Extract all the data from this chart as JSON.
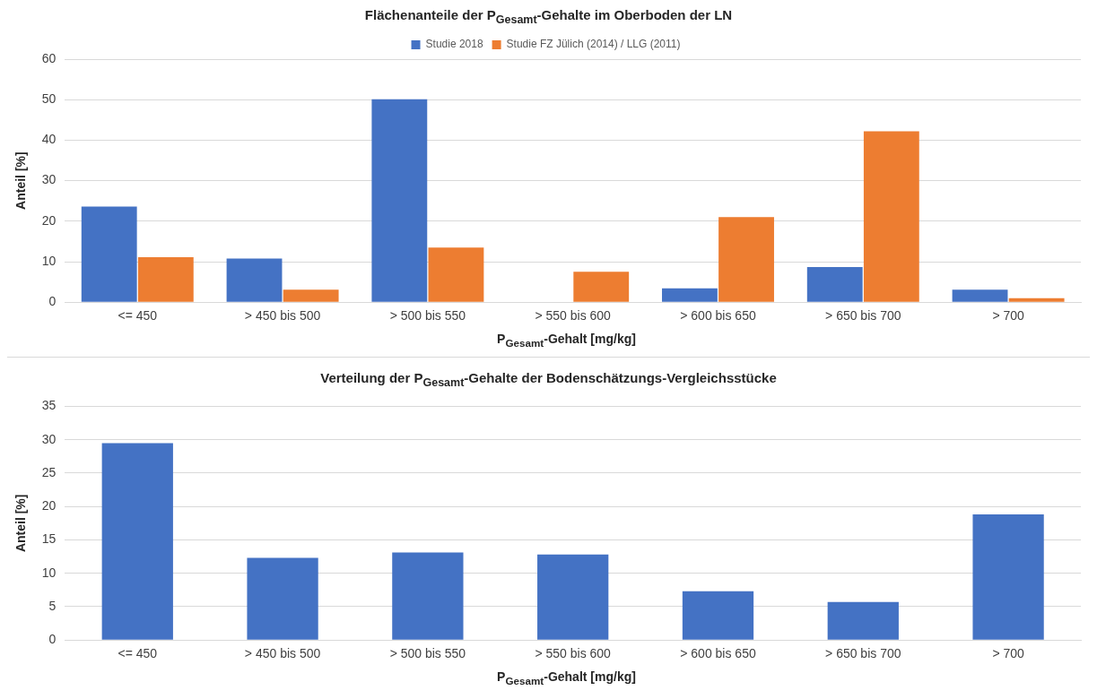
{
  "chart_data": [
    {
      "type": "bar",
      "title": "Flächenanteile der P$_{Gesamt}$-Gehalte im Oberboden der LN",
      "xlabel": "P$_{Gesamt}$-Gehalt [mg/kg]",
      "ylabel": "Anteil [%]",
      "categories": [
        "<= 450",
        "> 450 bis 500",
        "> 500 bis 550",
        "> 550 bis 600",
        "> 600 bis 650",
        "> 650 bis 700",
        "> 700"
      ],
      "series": [
        {
          "name": "Studie 2018",
          "color": "#4472c4",
          "values": [
            23.6,
            10.8,
            50.1,
            0,
            3.4,
            8.7,
            3.1
          ]
        },
        {
          "name": "Studie FZ Jülich (2014) / LLG (2011)",
          "color": "#ed7d31",
          "values": [
            11.1,
            3.1,
            13.5,
            7.5,
            21.0,
            42.2,
            1.0
          ]
        }
      ],
      "ylim": [
        0,
        60
      ],
      "yticks": [
        0,
        10,
        20,
        30,
        40,
        50,
        60
      ],
      "grid": "y",
      "legend": "top"
    },
    {
      "type": "bar",
      "title": "Verteilung der P$_{Gesamt}$-Gehalte der Bodenschätzungs-Vergleichsstücke",
      "xlabel": "P$_{Gesamt}$-Gehalt [mg/kg]",
      "ylabel": "Anteil [%]",
      "categories": [
        "<= 450",
        "> 450 bis 500",
        "> 500 bis 550",
        "> 550 bis 600",
        "> 600 bis 650",
        "> 650 bis 700",
        "> 700"
      ],
      "values": [
        29.5,
        12.3,
        13.1,
        12.8,
        7.3,
        5.7,
        18.8
      ],
      "color": "#4472c4",
      "ylim": [
        0,
        35
      ],
      "yticks": [
        0,
        5,
        10,
        15,
        20,
        25,
        30,
        35
      ],
      "grid": "y"
    }
  ]
}
